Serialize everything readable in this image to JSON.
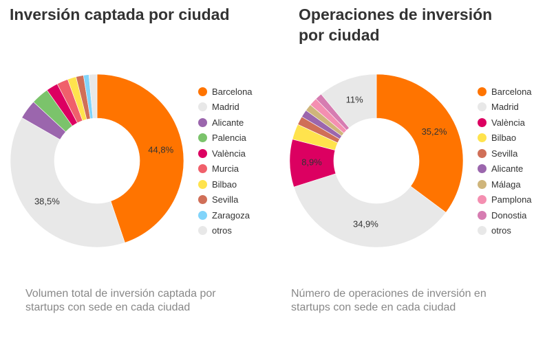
{
  "chart_data": [
    {
      "type": "pie",
      "donut": true,
      "title": "Inversión captada por ciudad",
      "caption": "Volumen total de inversión captada por startups con sede en cada ciudad",
      "legend_position": "right",
      "categories": [
        "Barcelona",
        "Madrid",
        "Alicante",
        "Palencia",
        "València",
        "Murcia",
        "Bilbao",
        "Sevilla",
        "Zaragoza",
        "otros"
      ],
      "values": [
        44.8,
        38.5,
        3.6,
        3.3,
        2.2,
        2.1,
        1.6,
        1.4,
        1.0,
        1.5
      ],
      "colors": [
        "#ff7400",
        "#e8e8e8",
        "#9b66ad",
        "#7bc36b",
        "#dc0061",
        "#f0606b",
        "#ffe34d",
        "#d06f58",
        "#81d4fa",
        "#e8e8e8"
      ],
      "data_labels": {
        "Barcelona": "44,8%",
        "Madrid": "38,5%"
      }
    },
    {
      "type": "pie",
      "donut": true,
      "title": "Operaciones de inversión por ciudad",
      "caption": "Número de operaciones de inversión en startups con sede en cada ciudad",
      "legend_position": "right",
      "categories": [
        "Barcelona",
        "Madrid",
        "València",
        "Bilbao",
        "Sevilla",
        "Alicante",
        "Málaga",
        "Pamplona",
        "Donostia",
        "otros"
      ],
      "values": [
        35.2,
        34.9,
        8.9,
        2.9,
        1.6,
        1.4,
        1.3,
        1.5,
        1.3,
        11.0
      ],
      "colors": [
        "#ff7400",
        "#e8e8e8",
        "#dc0061",
        "#ffe34d",
        "#d06f58",
        "#9b66ad",
        "#cfb57b",
        "#f48fb1",
        "#d67cb1",
        "#e8e8e8"
      ],
      "data_labels": {
        "Barcelona": "35,2%",
        "Madrid": "34,9%",
        "València": "8,9%",
        "otros": "11%"
      }
    }
  ]
}
